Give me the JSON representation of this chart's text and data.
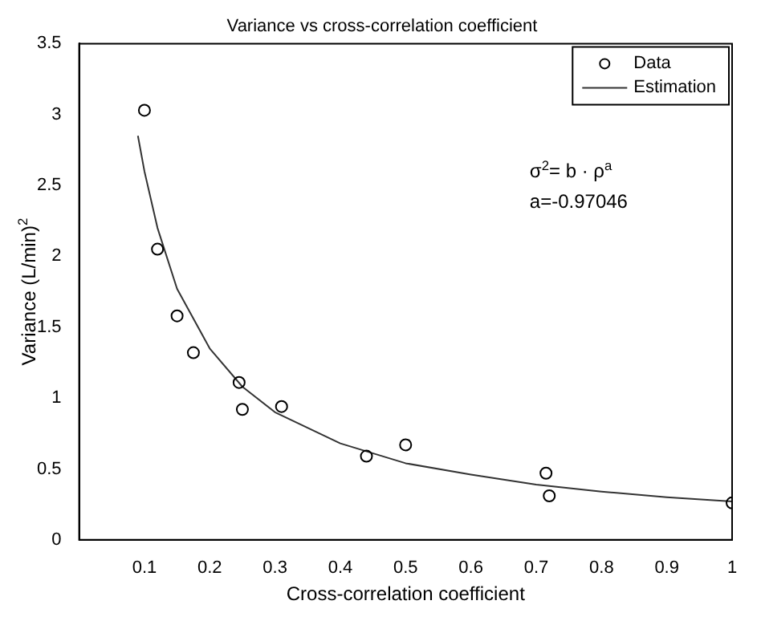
{
  "chart_data": {
    "type": "scatter",
    "title": "Variance vs cross-correlation coefficient",
    "xlabel": "Cross-correlation coefficient",
    "ylabel": "Variance (L/min)$^{2}$",
    "annotations": [
      "σ$^{2}$= b · ρ$^{a}$",
      "a=-0.97046"
    ],
    "series": [
      {
        "name": "Data",
        "marker": "circle",
        "color": "#000000",
        "x": [
          0.1,
          0.12,
          0.15,
          0.175,
          0.245,
          0.25,
          0.31,
          0.44,
          0.5,
          0.715,
          0.72,
          1.0
        ],
        "values": [
          3.03,
          2.05,
          1.58,
          1.32,
          1.11,
          0.92,
          0.94,
          0.59,
          0.67,
          0.47,
          0.31,
          0.26
        ]
      },
      {
        "name": "Estimation",
        "type": "line",
        "marker": "none",
        "line_style": "solid",
        "color": "#333333",
        "x": [
          0.09,
          0.1,
          0.12,
          0.15,
          0.2,
          0.25,
          0.3,
          0.4,
          0.5,
          0.6,
          0.7,
          0.8,
          0.9,
          1.0
        ],
        "values": [
          2.85,
          2.6,
          2.2,
          1.77,
          1.35,
          1.08,
          0.9,
          0.68,
          0.54,
          0.46,
          0.39,
          0.34,
          0.3,
          0.27
        ]
      }
    ],
    "xlim": [
      0,
      1
    ],
    "xticks": [
      0.1,
      0.2,
      0.3,
      0.4,
      0.5,
      0.6,
      0.7,
      0.8,
      0.9,
      1
    ],
    "ylim": [
      0,
      3.5
    ],
    "yticks": [
      0,
      0.5,
      1,
      1.5,
      2,
      2.5,
      3,
      3.5
    ],
    "grid": false,
    "legend": "top right"
  }
}
